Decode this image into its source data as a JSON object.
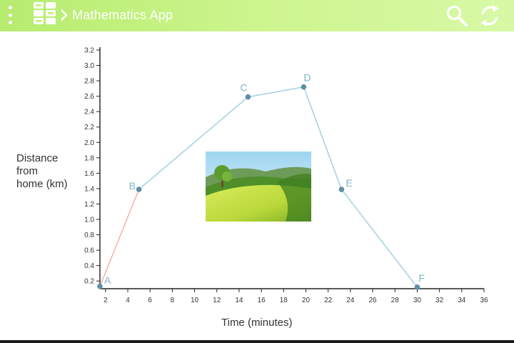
{
  "header": {
    "title": "Mathematics App",
    "menu_icon": "more-vert-icon",
    "logo_icon": "app-logo-icon",
    "search_icon": "search-icon",
    "refresh_icon": "refresh-icon"
  },
  "colors": {
    "header_bg": "#c4f283",
    "line": "#a7d3e3",
    "first_segment": "#f4b5b0",
    "point": "#5f8fa6",
    "point_label": "#7cb4c8"
  },
  "chart_data": {
    "type": "line",
    "xlabel": "Time (minutes)",
    "ylabel": [
      "Distance",
      "from",
      "home (km)"
    ],
    "xlim": [
      1.5,
      36
    ],
    "ylim": [
      0.1,
      3.2
    ],
    "x_ticks": [
      2,
      4,
      6,
      8,
      10,
      12,
      14,
      16,
      18,
      20,
      22,
      24,
      26,
      28,
      30,
      32,
      34,
      36
    ],
    "y_ticks": [
      0.2,
      0.4,
      0.6,
      0.8,
      1.0,
      1.2,
      1.4,
      1.6,
      1.8,
      2.0,
      2.2,
      2.4,
      2.6,
      2.8,
      3.0,
      3.2
    ],
    "points": [
      {
        "label": "A",
        "x": 1.5,
        "y": 0.13
      },
      {
        "label": "B",
        "x": 5,
        "y": 1.39
      },
      {
        "label": "C",
        "x": 14.8,
        "y": 2.59
      },
      {
        "label": "D",
        "x": 19.8,
        "y": 2.72
      },
      {
        "label": "E",
        "x": 23.2,
        "y": 1.39
      },
      {
        "label": "F",
        "x": 30,
        "y": 0.12
      }
    ],
    "grid": false,
    "legend": "none"
  },
  "illustration": {
    "icon": "landscape-picture-icon"
  }
}
